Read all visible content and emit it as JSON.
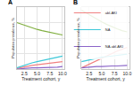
{
  "chart_data": [
    {
      "type": "line",
      "title": "A",
      "x_label": "Treatment cohort, y",
      "y_label": "Population prevalence, %",
      "x": [
        1,
        2,
        3,
        4,
        5,
        6,
        7,
        8,
        9,
        10
      ],
      "series": [
        {
          "color": "#7fae3e",
          "values": [
            75,
            72,
            69,
            66,
            64,
            62,
            60,
            58,
            57,
            55
          ]
        },
        {
          "name": "abl-AKI",
          "color": "#f08080",
          "values": [
            1,
            3,
            4,
            6,
            7,
            8,
            9,
            10,
            11,
            12
          ]
        },
        {
          "name": "NA",
          "color": "#3cc8d8",
          "values": [
            2,
            5,
            8,
            10,
            12,
            14,
            16,
            18,
            19,
            21
          ]
        },
        {
          "name": "NA-abl-AKI",
          "color": "#8a63c8",
          "values": [
            0,
            1,
            1,
            2,
            2,
            2,
            3,
            3,
            3,
            4
          ]
        }
      ],
      "xlim": [
        1,
        10.5
      ],
      "xticks": [
        2.5,
        {
          "value": 5,
          "label": "5.0"
        },
        7.5,
        {
          "value": 10,
          "label": "10.0"
        }
      ],
      "ylim": [
        0,
        100
      ],
      "yticks": [
        0,
        25,
        50,
        75,
        100
      ],
      "tick_labels": "x",
      "grid": true
    },
    {
      "type": "line",
      "title": "B",
      "x_label": "Treatment cohort, y",
      "y_label": "Population prevalence, %",
      "x": [
        1,
        2,
        3,
        4,
        5,
        6,
        7,
        8,
        9,
        10
      ],
      "series": [
        {
          "color": "#7fae3e",
          "values": [
            95,
            90,
            85,
            80,
            76,
            72,
            68,
            65,
            62,
            60
          ]
        },
        {
          "name": "abl-AKI",
          "color": "#f08080",
          "values": [
            2,
            6,
            10,
            14,
            18,
            22,
            26,
            29,
            32,
            35
          ]
        },
        {
          "name": "NA",
          "color": "#3cc8d8",
          "values": [
            12,
            14,
            16,
            17,
            19,
            20,
            21,
            22,
            23,
            24
          ]
        },
        {
          "name": "NA-abl-AKI",
          "color": "#8a63c8",
          "values": [
            2,
            3,
            3,
            4,
            4,
            5,
            5,
            5,
            6,
            6
          ]
        }
      ],
      "xlim": [
        1,
        10.5
      ],
      "xticks": [
        2.5,
        {
          "value": 5,
          "label": "5.0"
        },
        7.5,
        {
          "value": 10,
          "label": "10.0"
        }
      ],
      "ylim": [
        0,
        100
      ],
      "yticks": [
        0,
        25,
        50,
        75,
        100
      ],
      "tick_labels": "x",
      "grid": true,
      "legend": "right"
    }
  ]
}
